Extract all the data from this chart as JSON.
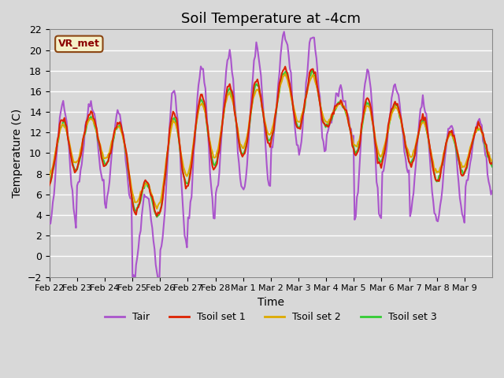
{
  "title": "Soil Temperature at -4cm",
  "xlabel": "Time",
  "ylabel": "Temperature (C)",
  "ylim": [
    -2,
    22
  ],
  "annotation": "VR_met",
  "bg_color": "#d8d8d8",
  "grid_color": "#ffffff",
  "legend_labels": [
    "Tair",
    "Tsoil set 1",
    "Tsoil set 2",
    "Tsoil set 3"
  ],
  "line_colors": [
    "#aa55cc",
    "#dd2200",
    "#ddaa00",
    "#33cc33"
  ],
  "x_tick_labels": [
    "Feb 22",
    "Feb 23",
    "Feb 24",
    "Feb 25",
    "Feb 26",
    "Feb 27",
    "Feb 28",
    "Mar 1",
    "Mar 2",
    "Mar 3",
    "Mar 4",
    "Mar 5",
    "Mar 6",
    "Mar 7",
    "Mar 8",
    "Mar 9"
  ],
  "title_fontsize": 13
}
